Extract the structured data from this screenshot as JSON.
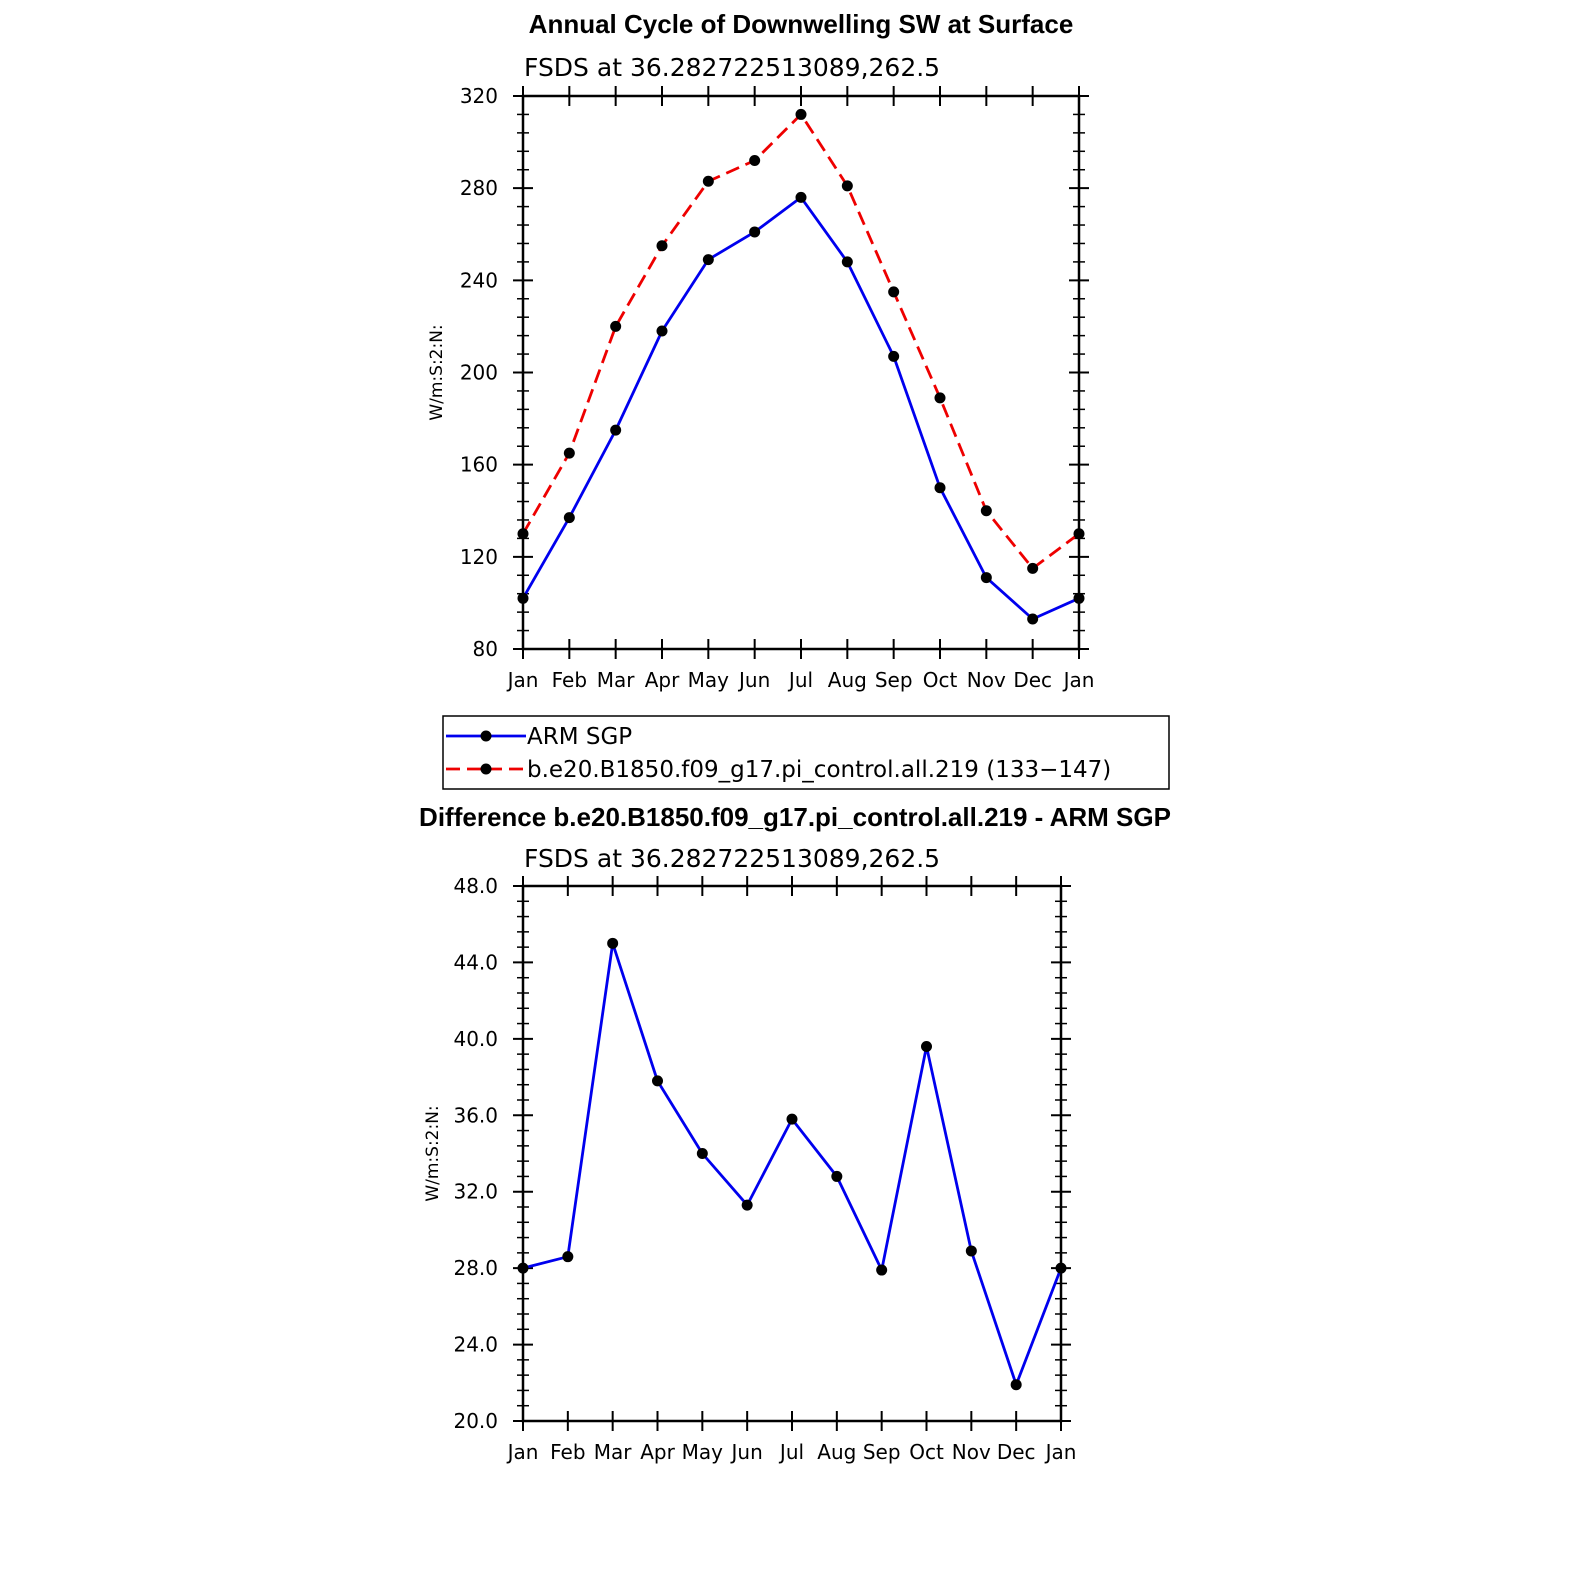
{
  "chart_data": [
    {
      "type": "line",
      "title": "Annual Cycle of Downwelling SW at Surface",
      "subtitle": "FSDS at 36.282722513089,262.5",
      "ylabel": "W/m:S:2:N:",
      "categories": [
        "Jan",
        "Feb",
        "Mar",
        "Apr",
        "May",
        "Jun",
        "Jul",
        "Aug",
        "Sep",
        "Oct",
        "Nov",
        "Dec",
        "Jan"
      ],
      "ylim": [
        80,
        320
      ],
      "yticks": [
        80,
        120,
        160,
        200,
        240,
        280,
        320
      ],
      "ytick_labels": [
        "80",
        "120",
        "160",
        "200",
        "240",
        "280",
        "320"
      ],
      "series": [
        {
          "name": "ARM SGP",
          "color": "#0000ee",
          "dash": "solid",
          "values": [
            102,
            137,
            175,
            218,
            249,
            261,
            276,
            248,
            207,
            150,
            111,
            93,
            102
          ]
        },
        {
          "name": "b.e20.B1850.f09_g17.pi_control.all.219 (133−147)",
          "color": "#ee0000",
          "dash": "dashed",
          "values": [
            130,
            165,
            220,
            255,
            283,
            292,
            312,
            281,
            235,
            189,
            140,
            115,
            130
          ]
        }
      ],
      "legend": "below"
    },
    {
      "type": "line",
      "title": "Difference b.e20.B1850.f09_g17.pi_control.all.219 - ARM SGP",
      "subtitle": "FSDS at 36.282722513089,262.5",
      "ylabel": "W/m:S:2:N:",
      "categories": [
        "Jan",
        "Feb",
        "Mar",
        "Apr",
        "May",
        "Jun",
        "Jul",
        "Aug",
        "Sep",
        "Oct",
        "Nov",
        "Dec",
        "Jan"
      ],
      "ylim": [
        20,
        48
      ],
      "yticks": [
        20,
        24,
        28,
        32,
        36,
        40,
        44,
        48
      ],
      "ytick_labels": [
        "20.0",
        "24.0",
        "28.0",
        "32.0",
        "36.0",
        "40.0",
        "44.0",
        "48.0"
      ],
      "series": [
        {
          "color": "#0000ee",
          "dash": "solid",
          "values": [
            28.0,
            28.6,
            45.0,
            37.8,
            34.0,
            31.3,
            35.8,
            32.8,
            27.9,
            39.6,
            28.9,
            21.9,
            28.0
          ]
        }
      ]
    }
  ]
}
